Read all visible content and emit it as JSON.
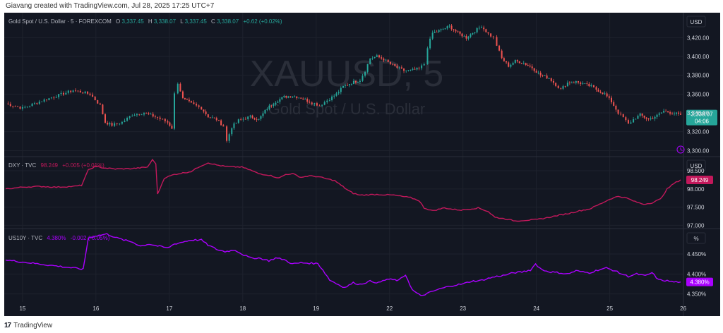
{
  "header": {
    "attribution": "Giavang created with TradingView.com, Jul 28, 2025 17:25 UTC+7"
  },
  "footer": {
    "logo_text": "TradingView",
    "logo_glyph": "17"
  },
  "colors": {
    "background": "#131722",
    "grid": "#1e222d",
    "separator": "#2a2e39",
    "axis_text": "#d1d4dc",
    "legend_text": "#b2b5be",
    "watermark": "#2a2e39",
    "up": "#26a69a",
    "down": "#ef5350",
    "dxy": "#c2185b",
    "us10y": "#aa00ff",
    "gold_badge": "#26a69a",
    "dxy_badge": "#c2185b",
    "us10y_badge": "#aa00ff"
  },
  "watermark": {
    "symbol": "XAUUSD, 5",
    "description": "Gold Spot / U.S. Dollar"
  },
  "panes": [
    {
      "legend": {
        "name": "Gold Spot / U.S. Dollar · 5 · FOREXCOM",
        "o_label": "O",
        "o": "3,337.45",
        "h_label": "H",
        "h": "3,338.07",
        "l_label": "L",
        "l": "3,337.45",
        "c_label": "C",
        "c": "3,338.07",
        "change": "+0.62 (+0.02%)"
      },
      "unit_badge": "USD",
      "price_badge": "3,338.07",
      "countdown": "04:06"
    },
    {
      "legend": {
        "name": "DXY · TVC",
        "value": "98.249",
        "change": "+0.005 (+0.01%)"
      },
      "unit_badge": "USD",
      "price_badge": "98.249"
    },
    {
      "legend": {
        "name": "US10Y · TVC",
        "value": "4.380%",
        "change": "-0.002 (-0.05%)"
      },
      "unit_badge": "%",
      "price_badge": "4.380%"
    }
  ],
  "chart_data": [
    {
      "type": "candlestick",
      "title": "Gold Spot / U.S. Dollar · 5 · FOREXCOM",
      "x_tick_labels": [
        "15",
        "16",
        "17",
        "18",
        "19",
        "22",
        "23",
        "24",
        "25",
        "26"
      ],
      "y_ticks": [
        "3,300.00",
        "3,320.00",
        "3,340.00",
        "3,360.00",
        "3,380.00",
        "3,400.00",
        "3,420.00"
      ],
      "ylim": [
        3295,
        3445
      ],
      "series": [
        {
          "name": "XAUUSD",
          "values": [
            [
              0,
              3350
            ],
            [
              1,
              3345
            ],
            [
              2,
              3352
            ],
            [
              3,
              3358
            ],
            [
              4,
              3364
            ],
            [
              5,
              3360
            ],
            [
              5.6,
              3348
            ],
            [
              5.9,
              3330
            ],
            [
              6.3,
              3327
            ],
            [
              6.9,
              3330
            ],
            [
              7.5,
              3338
            ],
            [
              8.2,
              3340
            ],
            [
              9,
              3335
            ],
            [
              9.6,
              3330
            ],
            [
              9.85,
              3324
            ],
            [
              10,
              3360
            ],
            [
              10.2,
              3372
            ],
            [
              10.5,
              3355
            ],
            [
              11,
              3350
            ],
            [
              11.6,
              3345
            ],
            [
              12,
              3336
            ],
            [
              12.5,
              3333
            ],
            [
              12.9,
              3326
            ],
            [
              13.1,
              3310
            ],
            [
              13.4,
              3325
            ],
            [
              13.8,
              3332
            ],
            [
              14.5,
              3336
            ],
            [
              15,
              3333
            ],
            [
              15.5,
              3345
            ],
            [
              16,
              3352
            ],
            [
              16.5,
              3357
            ],
            [
              17,
              3358
            ],
            [
              17.5,
              3356
            ],
            [
              18,
              3352
            ],
            [
              18.6,
              3348
            ],
            [
              19.2,
              3355
            ],
            [
              19.6,
              3360
            ],
            [
              20,
              3368
            ],
            [
              20.5,
              3372
            ],
            [
              21,
              3375
            ],
            [
              21.3,
              3385
            ],
            [
              21.6,
              3398
            ],
            [
              22,
              3400
            ],
            [
              22.4,
              3397
            ],
            [
              22.8,
              3392
            ],
            [
              23.2,
              3388
            ],
            [
              23.6,
              3385
            ],
            [
              24,
              3385
            ],
            [
              24.5,
              3387
            ],
            [
              24.8,
              3392
            ],
            [
              25,
              3410
            ],
            [
              25.3,
              3425
            ],
            [
              25.8,
              3428
            ],
            [
              26.3,
              3432
            ],
            [
              26.8,
              3425
            ],
            [
              27.3,
              3420
            ],
            [
              27.8,
              3427
            ],
            [
              28.2,
              3432
            ],
            [
              28.6,
              3424
            ],
            [
              28.9,
              3420
            ],
            [
              29.1,
              3412
            ],
            [
              29.4,
              3398
            ],
            [
              29.8,
              3390
            ],
            [
              30.2,
              3395
            ],
            [
              30.7,
              3393
            ],
            [
              31.2,
              3388
            ],
            [
              31.7,
              3380
            ],
            [
              32.2,
              3377
            ],
            [
              32.6,
              3370
            ],
            [
              32.9,
              3365
            ],
            [
              33.3,
              3372
            ],
            [
              33.8,
              3373
            ],
            [
              34.2,
              3371
            ],
            [
              34.7,
              3368
            ],
            [
              35,
              3365
            ],
            [
              35.5,
              3360
            ],
            [
              35.9,
              3352
            ],
            [
              36.3,
              3340
            ],
            [
              36.6,
              3335
            ],
            [
              36.9,
              3328
            ],
            [
              37.2,
              3333
            ],
            [
              37.6,
              3338
            ],
            [
              38.1,
              3333
            ],
            [
              38.6,
              3337
            ],
            [
              39,
              3342
            ],
            [
              39.5,
              3340
            ],
            [
              40,
              3338
            ]
          ]
        }
      ]
    },
    {
      "type": "line",
      "title": "DXY · TVC",
      "x_tick_labels": [
        "15",
        "16",
        "17",
        "18",
        "19",
        "22",
        "23",
        "24",
        "25",
        "26"
      ],
      "y_ticks": [
        "97.000",
        "97.500",
        "98.000",
        "98.500"
      ],
      "ylim": [
        96.95,
        98.85
      ],
      "series": [
        {
          "name": "DXY",
          "values": [
            [
              0,
              98.0
            ],
            [
              1,
              98.05
            ],
            [
              2,
              98.07
            ],
            [
              3,
              98.05
            ],
            [
              4,
              98.07
            ],
            [
              4.5,
              98.1
            ],
            [
              4.9,
              98.52
            ],
            [
              5.3,
              98.62
            ],
            [
              5.8,
              98.58
            ],
            [
              6.5,
              98.55
            ],
            [
              7.5,
              98.56
            ],
            [
              8.4,
              98.6
            ],
            [
              8.7,
              98.8
            ],
            [
              8.9,
              98.7
            ],
            [
              9,
              97.85
            ],
            [
              9.4,
              98.3
            ],
            [
              10,
              98.4
            ],
            [
              11,
              98.48
            ],
            [
              11.5,
              98.62
            ],
            [
              12,
              98.72
            ],
            [
              12.5,
              98.66
            ],
            [
              13,
              98.62
            ],
            [
              14,
              98.6
            ],
            [
              14.5,
              98.52
            ],
            [
              15,
              98.42
            ],
            [
              15.6,
              98.38
            ],
            [
              16.2,
              98.3
            ],
            [
              16.6,
              98.4
            ],
            [
              17,
              98.42
            ],
            [
              17.5,
              98.32
            ],
            [
              18,
              98.36
            ],
            [
              18.5,
              98.34
            ],
            [
              19,
              98.28
            ],
            [
              19.5,
              98.23
            ],
            [
              20,
              98.06
            ],
            [
              20.3,
              97.96
            ],
            [
              20.6,
              97.88
            ],
            [
              21,
              97.83
            ],
            [
              22,
              97.85
            ],
            [
              23,
              97.83
            ],
            [
              24,
              97.76
            ],
            [
              24.5,
              97.68
            ],
            [
              24.8,
              97.48
            ],
            [
              25.3,
              97.4
            ],
            [
              26,
              97.48
            ],
            [
              26.5,
              97.44
            ],
            [
              27,
              97.42
            ],
            [
              28,
              97.48
            ],
            [
              28.6,
              97.38
            ],
            [
              29,
              97.22
            ],
            [
              29.6,
              97.18
            ],
            [
              30.2,
              97.12
            ],
            [
              30.8,
              97.14
            ],
            [
              31.5,
              97.16
            ],
            [
              32.2,
              97.22
            ],
            [
              32.8,
              97.28
            ],
            [
              33.4,
              97.33
            ],
            [
              34,
              97.4
            ],
            [
              34.6,
              97.45
            ],
            [
              35.2,
              97.58
            ],
            [
              35.8,
              97.72
            ],
            [
              36.3,
              97.8
            ],
            [
              36.8,
              97.75
            ],
            [
              37.3,
              97.65
            ],
            [
              37.8,
              97.58
            ],
            [
              38.3,
              97.62
            ],
            [
              38.8,
              97.72
            ],
            [
              39.2,
              98.0
            ],
            [
              39.6,
              98.15
            ],
            [
              40,
              98.25
            ]
          ]
        }
      ]
    },
    {
      "type": "line",
      "title": "US10Y · TVC",
      "x_tick_labels": [
        "15",
        "16",
        "17",
        "18",
        "19",
        "22",
        "23",
        "24",
        "25",
        "26"
      ],
      "y_ticks": [
        "4.350%",
        "4.400%",
        "4.450%"
      ],
      "ylim": [
        4.33,
        4.51
      ],
      "series": [
        {
          "name": "US10Y",
          "values": [
            [
              0,
              4.435
            ],
            [
              1,
              4.43
            ],
            [
              2,
              4.425
            ],
            [
              3,
              4.42
            ],
            [
              4,
              4.415
            ],
            [
              4.6,
              4.412
            ],
            [
              4.9,
              4.49
            ],
            [
              5.3,
              4.495
            ],
            [
              6,
              4.5
            ],
            [
              6.6,
              4.49
            ],
            [
              7,
              4.485
            ],
            [
              7.5,
              4.48
            ],
            [
              8,
              4.47
            ],
            [
              8.5,
              4.475
            ],
            [
              9,
              4.47
            ],
            [
              9.6,
              4.465
            ],
            [
              10,
              4.475
            ],
            [
              11,
              4.485
            ],
            [
              11.6,
              4.485
            ],
            [
              12,
              4.472
            ],
            [
              12.6,
              4.46
            ],
            [
              13,
              4.456
            ],
            [
              13.6,
              4.46
            ],
            [
              14,
              4.45
            ],
            [
              14.5,
              4.44
            ],
            [
              15,
              4.44
            ],
            [
              15.6,
              4.433
            ],
            [
              16,
              4.44
            ],
            [
              16.5,
              4.436
            ],
            [
              17,
              4.425
            ],
            [
              17.5,
              4.428
            ],
            [
              18.5,
              4.426
            ],
            [
              18.8,
              4.41
            ],
            [
              19.2,
              4.385
            ],
            [
              19.6,
              4.376
            ],
            [
              20.1,
              4.366
            ],
            [
              20.6,
              4.378
            ],
            [
              21,
              4.374
            ],
            [
              21.6,
              4.382
            ],
            [
              22.1,
              4.378
            ],
            [
              22.6,
              4.387
            ],
            [
              23.3,
              4.384
            ],
            [
              23.7,
              4.398
            ],
            [
              24.1,
              4.36
            ],
            [
              24.6,
              4.345
            ],
            [
              25.1,
              4.353
            ],
            [
              25.6,
              4.361
            ],
            [
              26.1,
              4.367
            ],
            [
              26.6,
              4.372
            ],
            [
              27.1,
              4.375
            ],
            [
              27.6,
              4.382
            ],
            [
              28.1,
              4.383
            ],
            [
              28.6,
              4.389
            ],
            [
              29.1,
              4.394
            ],
            [
              29.6,
              4.397
            ],
            [
              30.1,
              4.403
            ],
            [
              30.6,
              4.405
            ],
            [
              31.1,
              4.41
            ],
            [
              31.4,
              4.425
            ],
            [
              31.8,
              4.41
            ],
            [
              32.3,
              4.405
            ],
            [
              32.8,
              4.403
            ],
            [
              33.3,
              4.4
            ],
            [
              33.8,
              4.408
            ],
            [
              34.2,
              4.405
            ],
            [
              34.6,
              4.403
            ],
            [
              35.1,
              4.41
            ],
            [
              35.6,
              4.415
            ],
            [
              36.1,
              4.408
            ],
            [
              36.5,
              4.4
            ],
            [
              36.9,
              4.394
            ],
            [
              37.4,
              4.4
            ],
            [
              37.9,
              4.395
            ],
            [
              38.3,
              4.403
            ],
            [
              38.7,
              4.385
            ],
            [
              39.2,
              4.383
            ],
            [
              39.6,
              4.38
            ],
            [
              40,
              4.38
            ]
          ]
        }
      ]
    }
  ]
}
